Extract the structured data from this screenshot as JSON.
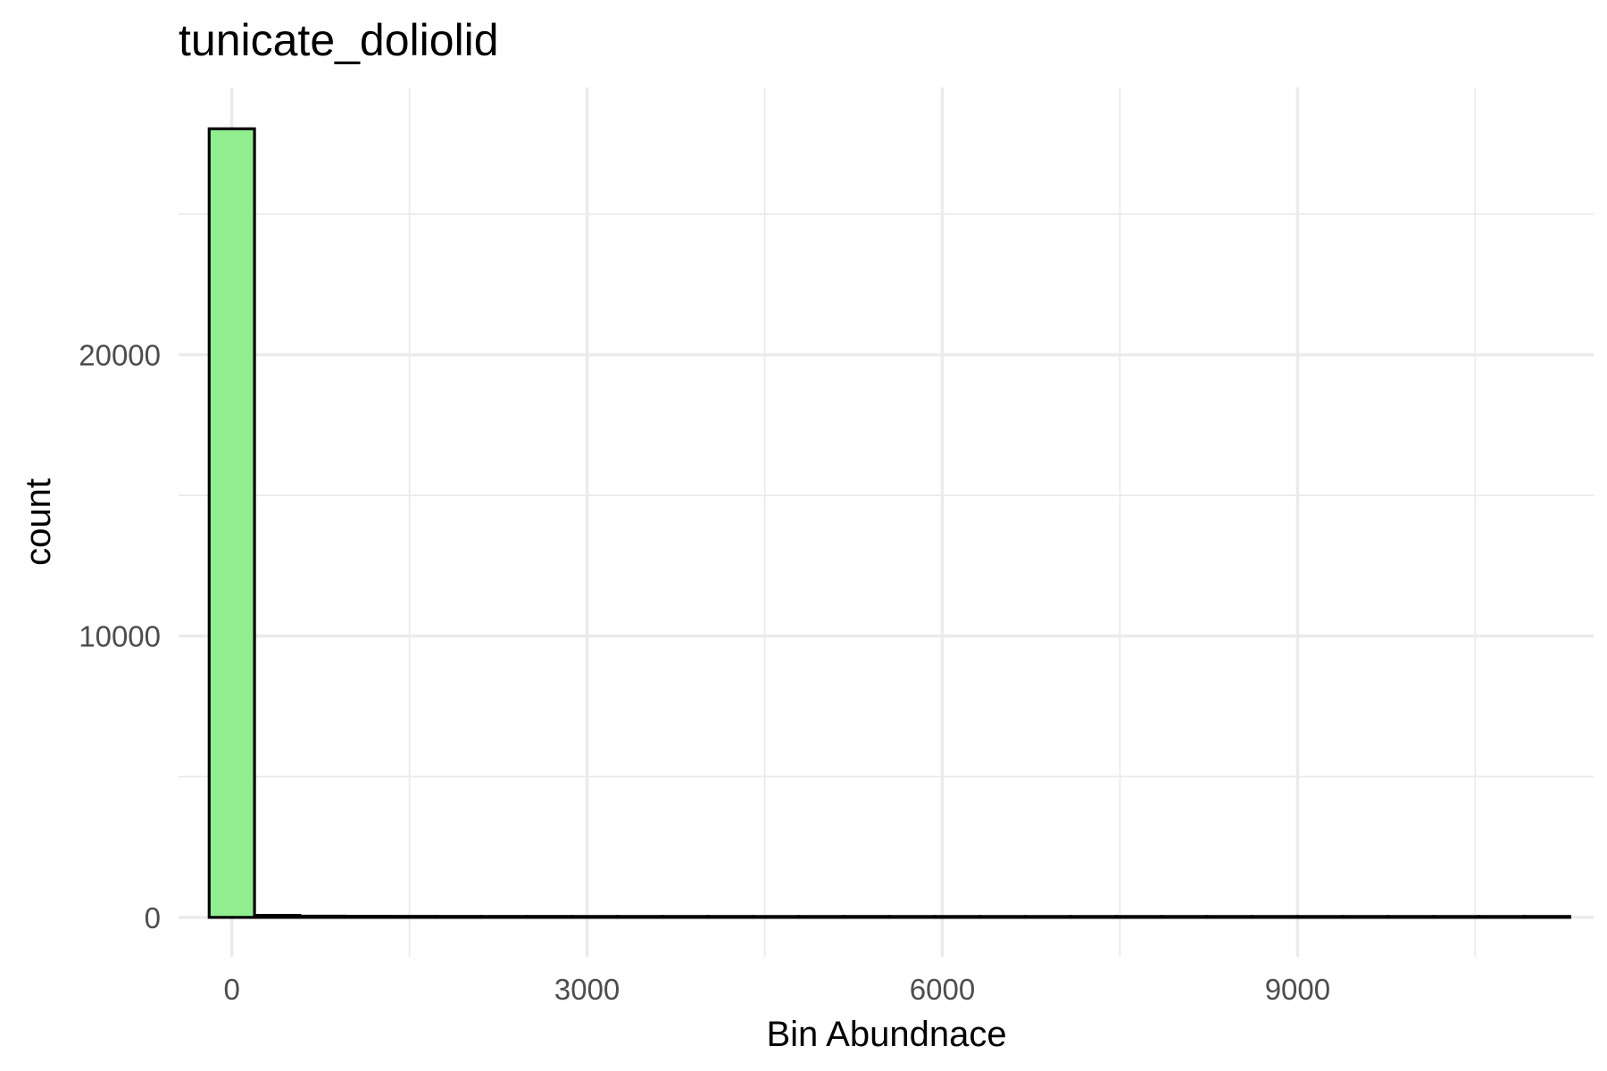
{
  "chart_data": {
    "type": "bar",
    "title": "tunicate_doliolid",
    "xlabel": "Bin Abundnace",
    "ylabel": "count",
    "xlim": [
      -450,
      11500
    ],
    "ylim": [
      -1400,
      29500
    ],
    "x_ticks": [
      0,
      3000,
      6000,
      9000
    ],
    "x_tick_labels": [
      "0",
      "3000",
      "6000",
      "9000"
    ],
    "y_ticks": [
      0,
      10000,
      20000
    ],
    "y_tick_labels": [
      "0",
      "10000",
      "20000"
    ],
    "grid": true,
    "legend": "none",
    "bin_width": 383,
    "bin_start": -191.5,
    "values": [
      28000,
      40,
      12,
      6,
      4,
      3,
      2,
      2,
      1,
      1,
      1,
      1,
      0,
      0,
      1,
      0,
      0,
      0,
      0,
      0,
      0,
      0,
      0,
      0,
      0,
      0,
      0,
      0,
      0,
      1
    ],
    "colors": {
      "fill": "#90ee90",
      "outline": "#000000"
    }
  }
}
